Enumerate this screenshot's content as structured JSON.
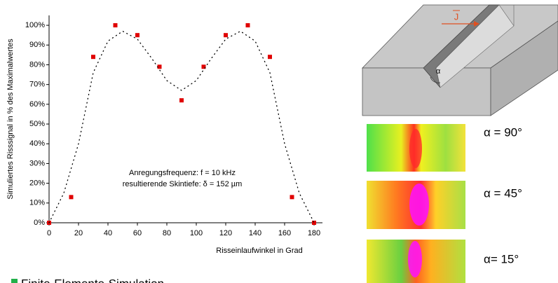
{
  "chart_data": {
    "type": "scatter",
    "x_label": "Risseinlaufwinkel in Grad",
    "y_label": "Simuliertes Risssignal in % des Maximalwertes",
    "annotations": [
      "Anregungsfrequenz: f = 10 kHz",
      "resultierende Skintiefe: δ = 152 µm"
    ],
    "xlim": [
      0,
      180
    ],
    "xticks": [
      0,
      20,
      40,
      60,
      80,
      100,
      120,
      140,
      160,
      180
    ],
    "ylim": [
      0,
      105
    ],
    "yticks": [
      {
        "value": 0,
        "label": "0%"
      },
      {
        "value": 10,
        "label": "10%"
      },
      {
        "value": 20,
        "label": "20%"
      },
      {
        "value": 30,
        "label": "30%"
      },
      {
        "value": 40,
        "label": "40%"
      },
      {
        "value": 50,
        "label": "50%"
      },
      {
        "value": 60,
        "label": "60%"
      },
      {
        "value": 70,
        "label": "70%"
      },
      {
        "value": 80,
        "label": "80%"
      },
      {
        "value": 90,
        "label": "90%"
      },
      {
        "value": 100,
        "label": "100%"
      }
    ],
    "series": [
      {
        "type": "scatter",
        "color": "#e00000",
        "x": [
          0,
          15,
          30,
          45,
          60,
          75,
          90,
          105,
          120,
          135,
          150,
          165,
          180
        ],
        "values": [
          0,
          13,
          84,
          100,
          95,
          79,
          62,
          79,
          95,
          100,
          84,
          13,
          0
        ]
      },
      {
        "type": "line",
        "color": "#000000",
        "dotted": true,
        "x": [
          0,
          10,
          20,
          30,
          40,
          50,
          60,
          70,
          80,
          90,
          100,
          110,
          120,
          130,
          140,
          150,
          160,
          170,
          180
        ],
        "values": [
          0,
          15,
          40,
          76,
          92,
          97,
          93,
          83,
          72,
          67,
          72,
          83,
          93,
          97,
          92,
          76,
          40,
          15,
          0
        ]
      }
    ],
    "legend": {
      "text": "Finite-Elemente-Simulation",
      "color": "#22b04a"
    }
  },
  "panel": {
    "current_label": "J",
    "angle_label": "α",
    "images": [
      {
        "label": "α = 90°"
      },
      {
        "label": "α = 45°"
      },
      {
        "label": "α= 15°"
      }
    ]
  }
}
